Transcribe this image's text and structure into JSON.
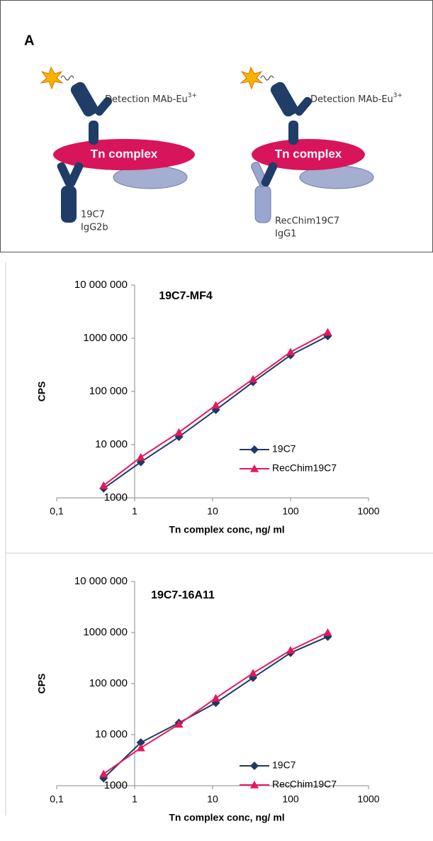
{
  "diagram": {
    "panel_label": "A",
    "detection_label": "Detection MAb-Eu",
    "detection_superscript": "3+",
    "complex_label": "Tn complex",
    "left_antibody": [
      "19C7",
      "IgG2b"
    ],
    "right_antibody": [
      "RecChim19C7",
      "IgG1"
    ]
  },
  "chart_data": [
    {
      "type": "line",
      "title": "19C7-MF4",
      "x_label": "Tn complex conc, ng/ ml",
      "y_label": "CPS",
      "x_log": true,
      "y_log": true,
      "yaxis_at_x": 1,
      "legend": "lower right",
      "xlim": [
        0.1,
        1000
      ],
      "xticks": [
        {
          "value": 0.1,
          "label": "0,1"
        },
        1,
        10,
        100,
        1000
      ],
      "ylim": [
        1000,
        10000000
      ],
      "yticks": [
        1000,
        {
          "value": 10000,
          "label": "10 000"
        },
        {
          "value": 100000,
          "label": "100 000"
        },
        {
          "value": 1000000,
          "label": "1000 000"
        },
        {
          "value": 10000000,
          "label": "10 000 000"
        }
      ],
      "x": [
        0.4,
        1.2,
        3.7,
        11,
        33,
        100,
        300
      ],
      "series": [
        {
          "name": "19C7",
          "color": "#1f3864",
          "marker": "diamond",
          "values": [
            1500,
            4700,
            14000,
            45000,
            150000,
            480000,
            1100000
          ]
        },
        {
          "name": "RecChim19C7",
          "color": "#e6175c",
          "marker": "triangle",
          "values": [
            1700,
            5800,
            17000,
            55000,
            170000,
            550000,
            1300000
          ]
        }
      ]
    },
    {
      "type": "line",
      "title": "19C7-16A11",
      "x_label": "Tn complex conc, ng/ ml",
      "y_label": "CPS",
      "x_log": true,
      "y_log": true,
      "yaxis_at_x": 1,
      "legend": "lower right",
      "xlim": [
        0.1,
        1000
      ],
      "xticks": [
        {
          "value": 0.1,
          "label": "0,1"
        },
        1,
        10,
        100,
        1000
      ],
      "ylim": [
        1000,
        10000000
      ],
      "yticks": [
        1000,
        {
          "value": 10000,
          "label": "10 000"
        },
        {
          "value": 100000,
          "label": "100 000"
        },
        {
          "value": 1000000,
          "label": "1000 000"
        },
        {
          "value": 10000000,
          "label": "10 000 000"
        }
      ],
      "x": [
        0.4,
        1.2,
        3.7,
        11,
        33,
        100,
        300
      ],
      "series": [
        {
          "name": "19C7",
          "color": "#1f3864",
          "marker": "diamond",
          "values": [
            1400,
            7000,
            17000,
            42000,
            130000,
            400000,
            830000
          ]
        },
        {
          "name": "RecChim19C7",
          "color": "#e6175c",
          "marker": "triangle",
          "values": [
            1700,
            5500,
            16000,
            52000,
            160000,
            450000,
            1000000
          ]
        }
      ]
    }
  ]
}
